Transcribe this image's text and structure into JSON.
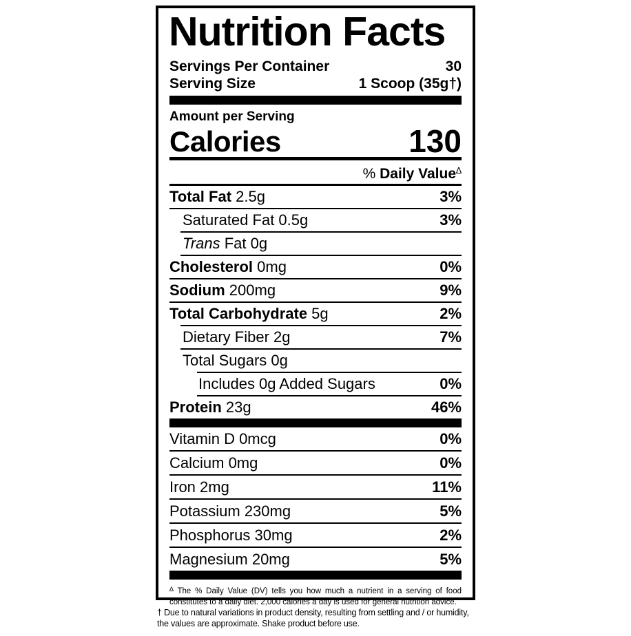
{
  "label": {
    "title": "Nutrition Facts",
    "servings_per_container": {
      "name": "Servings Per Container",
      "value": "30"
    },
    "serving_size": {
      "name": "Serving Size",
      "value": "1 Scoop  (35g†)"
    },
    "amount_per_serving": "Amount per Serving",
    "calories": {
      "name": "Calories",
      "value": "130"
    },
    "daily_value_header": {
      "pct": "% ",
      "text": "Daily Value",
      "symbol": "∆"
    },
    "nutrients": [
      {
        "bold": "Total Fat",
        "italic": "",
        "text": " 2.5g",
        "dv": "3%"
      },
      {
        "bold": "",
        "italic": "",
        "text": "Saturated Fat 0.5g",
        "dv": "3%"
      },
      {
        "bold": "",
        "italic": "Trans",
        "text": " Fat 0g",
        "dv": ""
      },
      {
        "bold": "Cholesterol",
        "italic": "",
        "text": " 0mg",
        "dv": "0%"
      },
      {
        "bold": "Sodium",
        "italic": "",
        "text": " 200mg",
        "dv": "9%"
      },
      {
        "bold": "Total Carbohydrate",
        "italic": "",
        "text": " 5g",
        "dv": "2%"
      },
      {
        "bold": "",
        "italic": "",
        "text": "Dietary Fiber 2g",
        "dv": "7%"
      },
      {
        "bold": "",
        "italic": "",
        "text": "Total Sugars 0g",
        "dv": ""
      },
      {
        "bold": "",
        "italic": "",
        "text": "Includes 0g Added Sugars",
        "dv": "0%"
      },
      {
        "bold": "Protein",
        "italic": "",
        "text": " 23g",
        "dv": "46%"
      }
    ],
    "micronutrients": [
      {
        "text": "Vitamin D 0mcg",
        "dv": "0%"
      },
      {
        "text": "Calcium 0mg",
        "dv": "0%"
      },
      {
        "text": "Iron 2mg",
        "dv": "11%"
      },
      {
        "text": "Potassium 230mg",
        "dv": "5%"
      },
      {
        "text": "Phosphorus 30mg",
        "dv": "2%"
      },
      {
        "text": "Magnesium 20mg",
        "dv": "5%"
      }
    ],
    "footnote": {
      "symbol": "∆",
      "text": "The % Daily Value (DV) tells you how much a nutrient in a serving of food constitutes to a daily diet. 2,000 calories a day is used for general nutrition advice."
    }
  },
  "product_note": "† Due to natural variations in product density, resulting from settling and / or humidity, the values are approximate. Shake product before use.",
  "colors": {
    "ink": "#000000",
    "background": "#ffffff"
  }
}
